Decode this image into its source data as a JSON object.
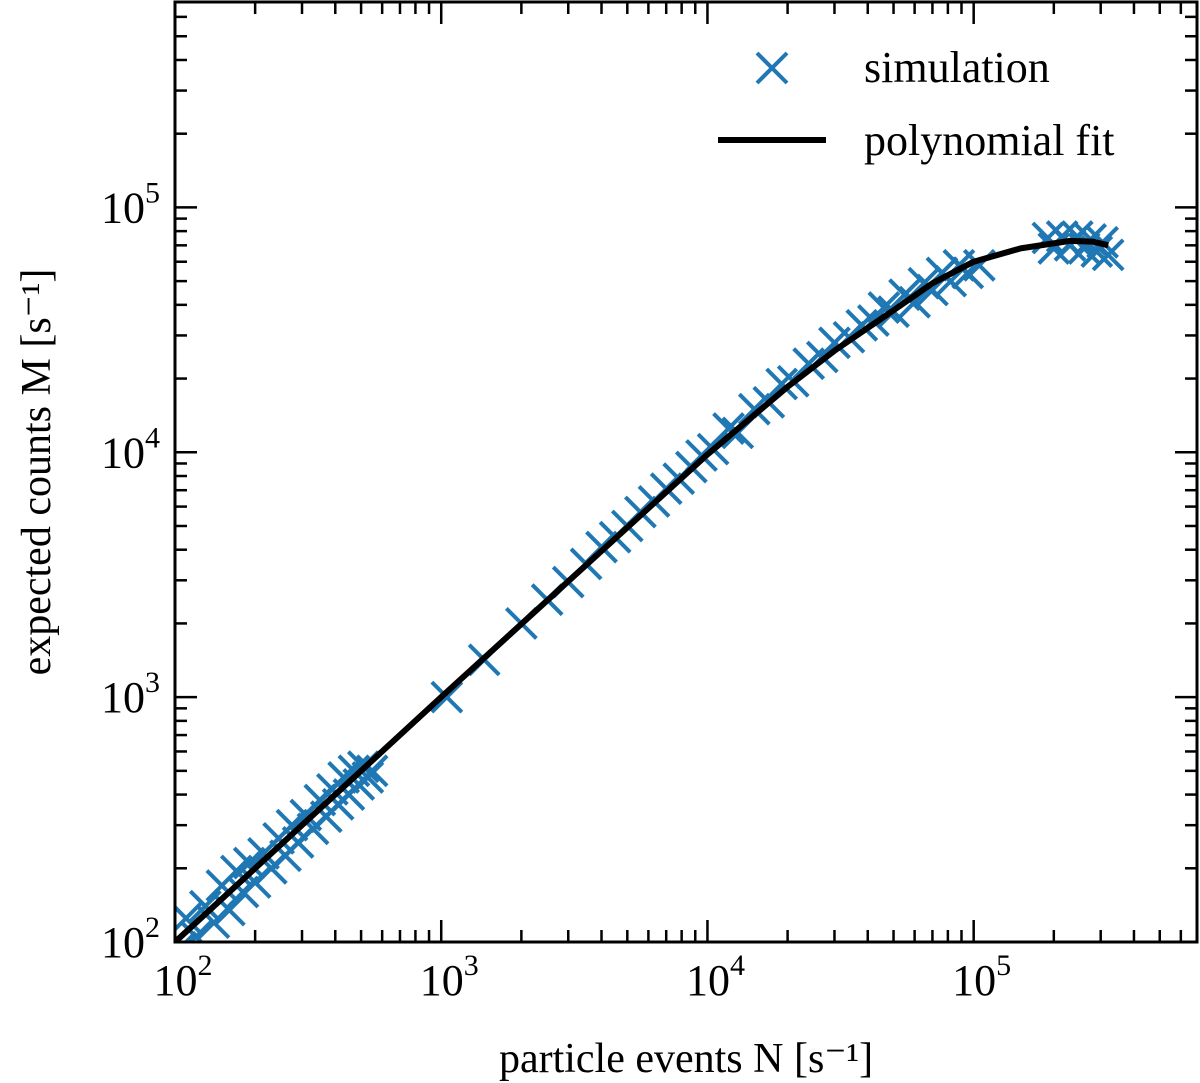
{
  "chart_data": {
    "type": "scatter",
    "xlabel": "particle events N [s⁻¹]",
    "ylabel": "expected counts M [s⁻¹]",
    "xscale": "log",
    "yscale": "log",
    "xlim": [
      100,
      690000
    ],
    "ylim": [
      100,
      690000
    ],
    "xticks": [
      {
        "value": 100,
        "label": "10",
        "exp": "2"
      },
      {
        "value": 1000,
        "label": "10",
        "exp": "3"
      },
      {
        "value": 10000,
        "label": "10",
        "exp": "4"
      },
      {
        "value": 100000,
        "label": "10",
        "exp": "5"
      }
    ],
    "yticks": [
      {
        "value": 100,
        "label": "10",
        "exp": "2"
      },
      {
        "value": 1000,
        "label": "10",
        "exp": "3"
      },
      {
        "value": 10000,
        "label": "10",
        "exp": "4"
      },
      {
        "value": 100000,
        "label": "10",
        "exp": "5"
      }
    ],
    "grid": false,
    "legend_position": "top-right",
    "series": [
      {
        "name": "simulation",
        "kind": "scatter",
        "marker": "x",
        "color": "#1f77b4",
        "points": [
          [
            105,
            95
          ],
          [
            110,
            125
          ],
          [
            120,
            105
          ],
          [
            130,
            140
          ],
          [
            140,
            120
          ],
          [
            150,
            170
          ],
          [
            160,
            135
          ],
          [
            170,
            195
          ],
          [
            180,
            160
          ],
          [
            190,
            210
          ],
          [
            200,
            175
          ],
          [
            215,
            230
          ],
          [
            230,
            200
          ],
          [
            245,
            265
          ],
          [
            260,
            225
          ],
          [
            275,
            300
          ],
          [
            290,
            255
          ],
          [
            310,
            330
          ],
          [
            330,
            290
          ],
          [
            350,
            380
          ],
          [
            370,
            325
          ],
          [
            390,
            420
          ],
          [
            410,
            365
          ],
          [
            430,
            470
          ],
          [
            450,
            400
          ],
          [
            470,
            500
          ],
          [
            490,
            440
          ],
          [
            510,
            520
          ],
          [
            530,
            470
          ],
          [
            550,
            500
          ],
          [
            1050,
            1000
          ],
          [
            1450,
            1420
          ],
          [
            2000,
            2000
          ],
          [
            2500,
            2500
          ],
          [
            3000,
            2950
          ],
          [
            3500,
            3500
          ],
          [
            4000,
            4100
          ],
          [
            4500,
            4500
          ],
          [
            5000,
            5000
          ],
          [
            5600,
            5700
          ],
          [
            6300,
            6300
          ],
          [
            7000,
            7100
          ],
          [
            7800,
            7800
          ],
          [
            8700,
            8700
          ],
          [
            9500,
            9700
          ],
          [
            10500,
            10300
          ],
          [
            12000,
            12500
          ],
          [
            13000,
            12000
          ],
          [
            15000,
            15000
          ],
          [
            17000,
            16000
          ],
          [
            19000,
            19000
          ],
          [
            21000,
            19500
          ],
          [
            24000,
            23000
          ],
          [
            27000,
            24500
          ],
          [
            30000,
            28000
          ],
          [
            34000,
            29500
          ],
          [
            38000,
            33000
          ],
          [
            42000,
            34500
          ],
          [
            46000,
            39000
          ],
          [
            50000,
            37500
          ],
          [
            55000,
            44000
          ],
          [
            60000,
            41000
          ],
          [
            65000,
            49000
          ],
          [
            70000,
            46000
          ],
          [
            76000,
            54000
          ],
          [
            82000,
            50000
          ],
          [
            88000,
            58000
          ],
          [
            95000,
            54000
          ],
          [
            105000,
            58000
          ],
          [
            190000,
            75000
          ],
          [
            200000,
            68000
          ],
          [
            215000,
            76000
          ],
          [
            230000,
            70000
          ],
          [
            245000,
            76000
          ],
          [
            260000,
            68000
          ],
          [
            275000,
            74000
          ],
          [
            290000,
            66000
          ],
          [
            305000,
            72000
          ],
          [
            320000,
            64000
          ]
        ]
      },
      {
        "name": "polynomial fit",
        "kind": "line",
        "color": "#000000",
        "points": [
          [
            100,
            100
          ],
          [
            1000,
            1000
          ],
          [
            10000,
            9800
          ],
          [
            20000,
            18500
          ],
          [
            30000,
            26000
          ],
          [
            50000,
            38000
          ],
          [
            70000,
            49000
          ],
          [
            100000,
            60000
          ],
          [
            150000,
            68000
          ],
          [
            230000,
            73000
          ],
          [
            280000,
            72500
          ],
          [
            320000,
            70000
          ]
        ]
      }
    ]
  }
}
